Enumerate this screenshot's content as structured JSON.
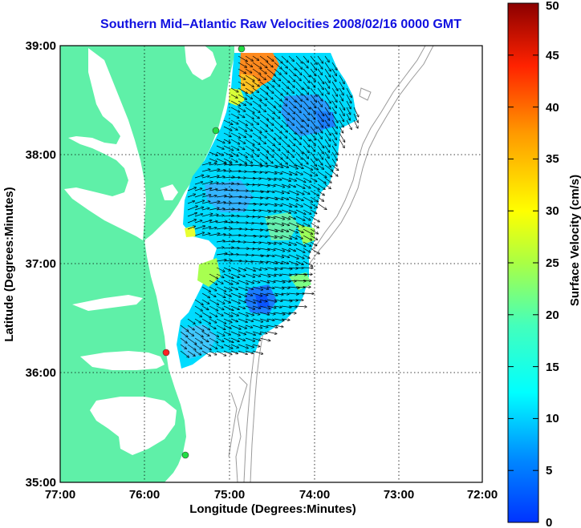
{
  "title": "Southern Mid–Atlantic Raw Velocities 2008/02/16 0000 GMT",
  "xlabel": "Longitude (Degrees:Minutes)",
  "ylabel": "Latitude (Degrees:Minutes)",
  "colorbar_label": "Surface Velocity (cm/s)",
  "x_ticks": [
    "77:00",
    "76:00",
    "75:00",
    "74:00",
    "73:00",
    "72:00"
  ],
  "y_ticks": [
    "39:00",
    "38:00",
    "37:00",
    "36:00",
    "35:00"
  ],
  "colorbar_ticks": [
    "0",
    "5",
    "10",
    "15",
    "20",
    "25",
    "30",
    "35",
    "40",
    "45",
    "50"
  ],
  "colors": {
    "land": "#5ff0a8",
    "title": "#1010e0",
    "bathymetry": "#9a9a9a"
  },
  "chart_data": {
    "type": "heatmap",
    "xlim": [
      -77,
      -72
    ],
    "ylim": [
      35,
      39
    ],
    "clim": [
      0,
      50
    ],
    "grid": true,
    "colormap": "jet"
  }
}
